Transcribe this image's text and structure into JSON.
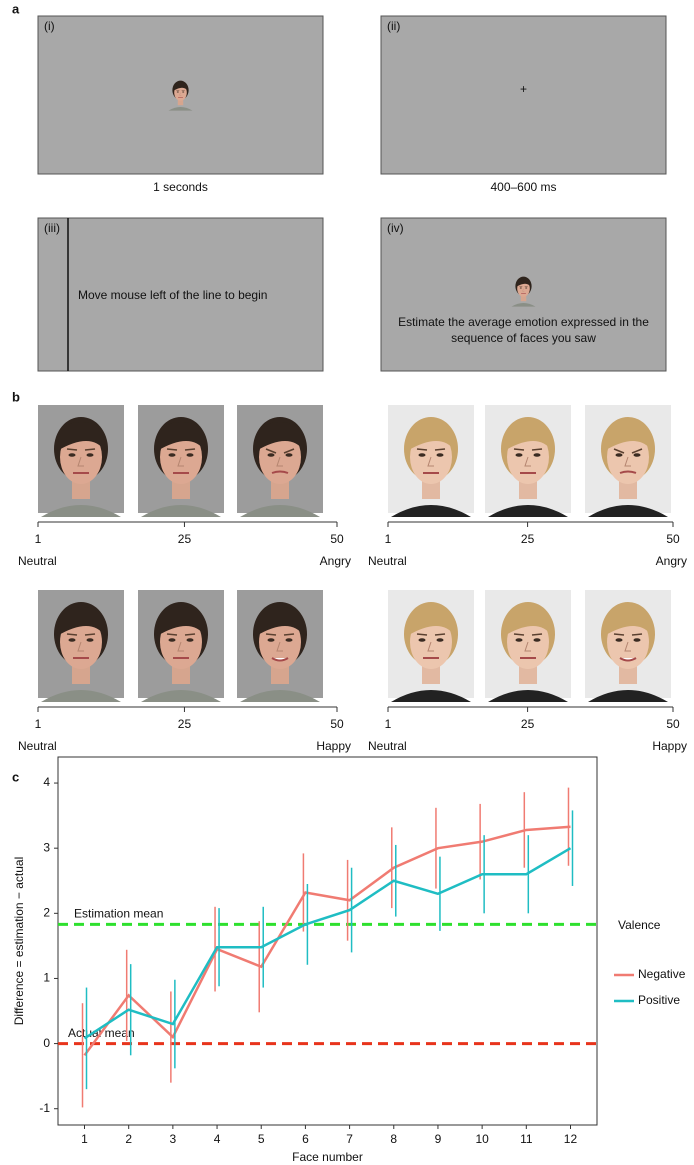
{
  "panel_a": {
    "label": "a",
    "screens": [
      {
        "label": "(i)",
        "caption": "1 seconds"
      },
      {
        "label": "(ii)",
        "caption": "400–600 ms",
        "fixation": "+"
      },
      {
        "label": "(iii)",
        "text": "Move mouse left of the line to begin"
      },
      {
        "label": "(iv)",
        "text": "Estimate the average emotion expressed in the sequence of faces you saw"
      }
    ]
  },
  "panel_b": {
    "label": "b",
    "scales": [
      {
        "ticks": [
          1,
          25,
          50
        ],
        "left": "Neutral",
        "right": "Angry"
      },
      {
        "ticks": [
          1,
          25,
          50
        ],
        "left": "Neutral",
        "right": "Angry"
      },
      {
        "ticks": [
          1,
          25,
          50
        ],
        "left": "Neutral",
        "right": "Happy"
      },
      {
        "ticks": [
          1,
          25,
          50
        ],
        "left": "Neutral",
        "right": "Happy"
      }
    ]
  },
  "chart_data": {
    "type": "line",
    "panel_label": "c",
    "x_label": "Face number",
    "y_label": "Difference = estimation − actual",
    "x": [
      1,
      2,
      3,
      4,
      5,
      6,
      7,
      8,
      9,
      10,
      11,
      12
    ],
    "xlim": [
      0.4,
      12.6
    ],
    "xticks": [
      1,
      2,
      3,
      4,
      5,
      6,
      7,
      8,
      9,
      10,
      11,
      12
    ],
    "ylim": [
      -1.25,
      4.4
    ],
    "yticks": [
      -1,
      0,
      1,
      2,
      3,
      4
    ],
    "series": [
      {
        "name": "Negative",
        "color": "#f07b72",
        "values": [
          -0.18,
          0.74,
          0.1,
          1.45,
          1.18,
          2.32,
          2.2,
          2.7,
          3.0,
          3.1,
          3.28,
          3.33
        ],
        "errors": [
          0.8,
          0.7,
          0.7,
          0.65,
          0.7,
          0.6,
          0.62,
          0.62,
          0.62,
          0.58,
          0.58,
          0.6
        ]
      },
      {
        "name": "Positive",
        "color": "#1fbdc3",
        "values": [
          0.08,
          0.52,
          0.3,
          1.48,
          1.48,
          1.83,
          2.05,
          2.5,
          2.3,
          2.6,
          2.6,
          3.0
        ],
        "errors": [
          0.78,
          0.7,
          0.68,
          0.6,
          0.62,
          0.62,
          0.65,
          0.55,
          0.57,
          0.6,
          0.6,
          0.58
        ]
      }
    ],
    "reference_lines": [
      {
        "value": 1.83,
        "label": "Estimation mean",
        "color": "#2ee02e"
      },
      {
        "value": 0,
        "label": "Actual mean",
        "color": "#e8341c"
      }
    ],
    "legend_title": "Valence",
    "legend": "right"
  }
}
